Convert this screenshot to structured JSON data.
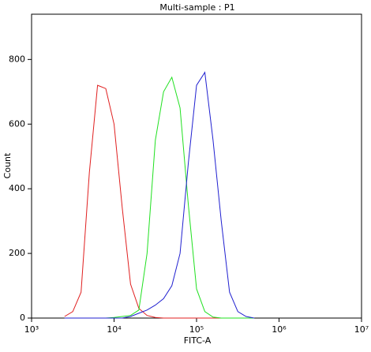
{
  "chart_data": {
    "type": "line",
    "title": "Multi-sample : P1",
    "xlabel": "FITC-A",
    "ylabel": "Count",
    "xscale": "log",
    "x": [
      2512,
      3162,
      3981,
      5012,
      6310,
      7943,
      10000,
      12589,
      15849,
      19953,
      25119,
      31623,
      39811,
      50119,
      63096,
      79433,
      100000,
      125893,
      158489,
      199526,
      251189,
      316228,
      398107,
      501187
    ],
    "series": [
      {
        "color": "#e02020",
        "values": [
          5,
          20,
          80,
          450,
          720,
          710,
          600,
          340,
          105,
          30,
          8,
          2,
          0,
          0,
          0,
          0,
          0,
          0,
          0,
          0,
          0,
          0,
          0,
          0
        ]
      },
      {
        "color": "#20e020",
        "values": [
          0,
          0,
          0,
          0,
          0,
          0,
          2,
          5,
          8,
          25,
          200,
          550,
          700,
          745,
          650,
          350,
          90,
          20,
          3,
          0,
          0,
          0,
          0,
          0
        ]
      },
      {
        "color": "#2020d0",
        "values": [
          0,
          0,
          0,
          0,
          0,
          0,
          0,
          0,
          5,
          15,
          25,
          40,
          60,
          100,
          200,
          480,
          720,
          760,
          550,
          300,
          80,
          20,
          5,
          0
        ]
      }
    ],
    "xlim": [
      1000,
      10000000
    ],
    "xticks": [
      {
        "value": 1000,
        "label": "10³"
      },
      {
        "value": 10000,
        "label": "10⁴"
      },
      {
        "value": 100000,
        "label": "10⁵"
      },
      {
        "value": 1000000,
        "label": "10⁶"
      },
      {
        "value": 10000000,
        "label": "10⁷"
      }
    ],
    "ylim": [
      0,
      940
    ],
    "yticks": [
      0,
      200,
      400,
      600,
      800
    ]
  }
}
